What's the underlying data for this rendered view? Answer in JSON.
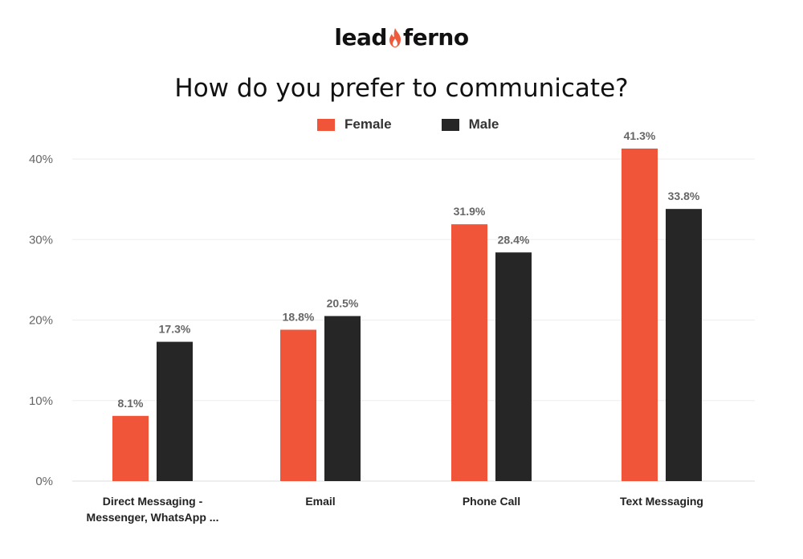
{
  "brand": {
    "logo_left": "lead",
    "logo_right": "ferno",
    "color": "#f05a3c"
  },
  "chart_data": {
    "type": "bar",
    "title": "How do you prefer to communicate?",
    "categories": [
      [
        "Direct Messaging -",
        "Messenger, WhatsApp ..."
      ],
      [
        "Email"
      ],
      [
        "Phone Call"
      ],
      [
        "Text Messaging"
      ]
    ],
    "series": [
      {
        "name": "Female",
        "color": "#f0553a",
        "values": [
          8.1,
          18.8,
          31.9,
          41.3
        ],
        "labels": [
          "8.1%",
          "18.8%",
          "31.9%",
          "41.3%"
        ]
      },
      {
        "name": "Male",
        "color": "#262626",
        "values": [
          17.3,
          20.5,
          28.4,
          33.8
        ],
        "labels": [
          "17.3%",
          "20.5%",
          "28.4%",
          "33.8%"
        ]
      }
    ],
    "yticks": [
      "0%",
      "10%",
      "20%",
      "30%",
      "40%"
    ],
    "ytick_values": [
      0,
      10,
      20,
      30,
      40
    ],
    "ylim": [
      0,
      41.3
    ],
    "grid": true,
    "legend_position": "top-center"
  }
}
